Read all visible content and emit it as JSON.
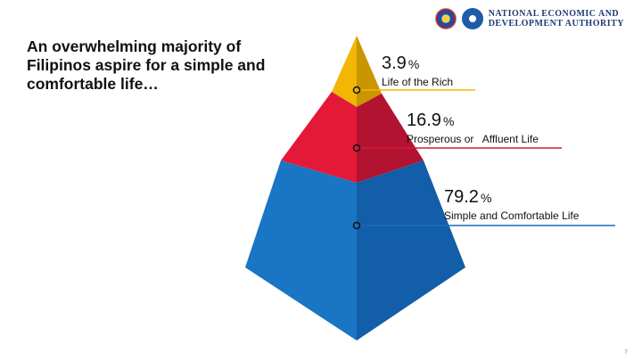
{
  "header": {
    "org_line1": "National Economic and",
    "org_line2": "Development Authority"
  },
  "headline": "An overwhelming majority of Filipinos aspire for a simple and comfortable life…",
  "pyramid": {
    "tiers": [
      {
        "value": "3.9",
        "unit": "%",
        "label": "Life of the Rich",
        "color": "#f5b900",
        "line_color": "#f5b900"
      },
      {
        "value": "16.9",
        "unit": "%",
        "label": "Prosperous or   Affluent Life",
        "color": "#e31937",
        "line_color": "#d71a3a"
      },
      {
        "value": "79.2",
        "unit": "%",
        "label": "Simple and Comfortable Life",
        "color": "#1a75c4",
        "line_color": "#1a6ac0"
      }
    ]
  },
  "footer": {
    "page_number": "7"
  }
}
